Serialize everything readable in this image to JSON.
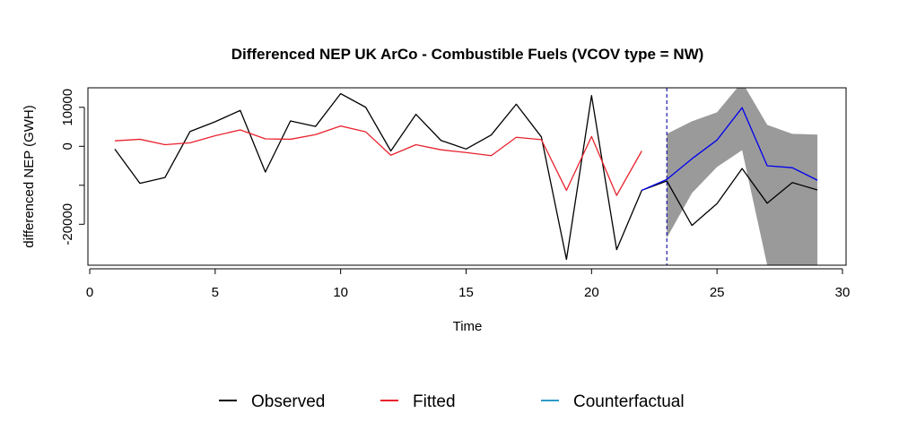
{
  "chart_data": {
    "type": "line",
    "title": "Differenced NEP UK ArCo - Combustible Fuels (VCOV type = NW)",
    "xlabel": "Time",
    "ylabel": "differenced NEP (GWH)",
    "xlim": [
      0,
      30
    ],
    "ylim": [
      -30500,
      15000
    ],
    "x_ticks": [
      0,
      5,
      10,
      15,
      20,
      25,
      30
    ],
    "y_ticks": [
      10000,
      0,
      -10000,
      -20000
    ],
    "y_tick_labels": [
      "10000",
      "0",
      "",
      "-20000"
    ],
    "intervention_x": 23,
    "series": [
      {
        "name": "Observed",
        "color": "#000000",
        "x": [
          1,
          2,
          3,
          4,
          5,
          6,
          7,
          8,
          9,
          10,
          11,
          12,
          13,
          14,
          15,
          16,
          17,
          18,
          19,
          20,
          21,
          22,
          23,
          24,
          25,
          26,
          27,
          28,
          29
        ],
        "values": [
          -700,
          -9500,
          -8000,
          3800,
          6300,
          9200,
          -6600,
          6500,
          5100,
          13500,
          10000,
          -1200,
          8200,
          1500,
          -700,
          2900,
          10800,
          2400,
          -29000,
          13000,
          -26500,
          -11300,
          -8900,
          -20300,
          -14700,
          -5700,
          -14600,
          -9300,
          -11200
        ]
      },
      {
        "name": "Fitted",
        "color": "#e8222d",
        "x": [
          1,
          2,
          3,
          4,
          5,
          6,
          7,
          8,
          9,
          10,
          11,
          12,
          13,
          14,
          15,
          16,
          17,
          18,
          19,
          20,
          21,
          22
        ],
        "values": [
          1400,
          1800,
          400,
          900,
          2700,
          4200,
          1900,
          1800,
          3000,
          5200,
          3700,
          -2300,
          400,
          -900,
          -1600,
          -2400,
          2300,
          1700,
          -11300,
          2500,
          -12600,
          -1200
        ]
      },
      {
        "name": "Counterfactual",
        "color": "#0000ee",
        "x": [
          22,
          23,
          24,
          25,
          26,
          27,
          28,
          29
        ],
        "values": [
          -11300,
          -8500,
          -3200,
          1600,
          9900,
          -5000,
          -5500,
          -8700
        ]
      }
    ],
    "confidence_band": {
      "color": "#9a9a9a",
      "x": [
        23,
        24,
        25,
        26,
        27,
        28,
        29
      ],
      "upper": [
        3200,
        6400,
        8700,
        16500,
        5500,
        3200,
        3000
      ],
      "lower": [
        -23500,
        -12000,
        -5300,
        -1000,
        -30500,
        -30500,
        -30500
      ]
    },
    "legend": {
      "placement": "bottom",
      "entries": [
        {
          "label": "Observed",
          "color": "#000000"
        },
        {
          "label": "Fitted",
          "color": "#e8222d"
        },
        {
          "label": "Counterfactual",
          "color": "#2f9bc9"
        }
      ]
    },
    "grid": false
  }
}
